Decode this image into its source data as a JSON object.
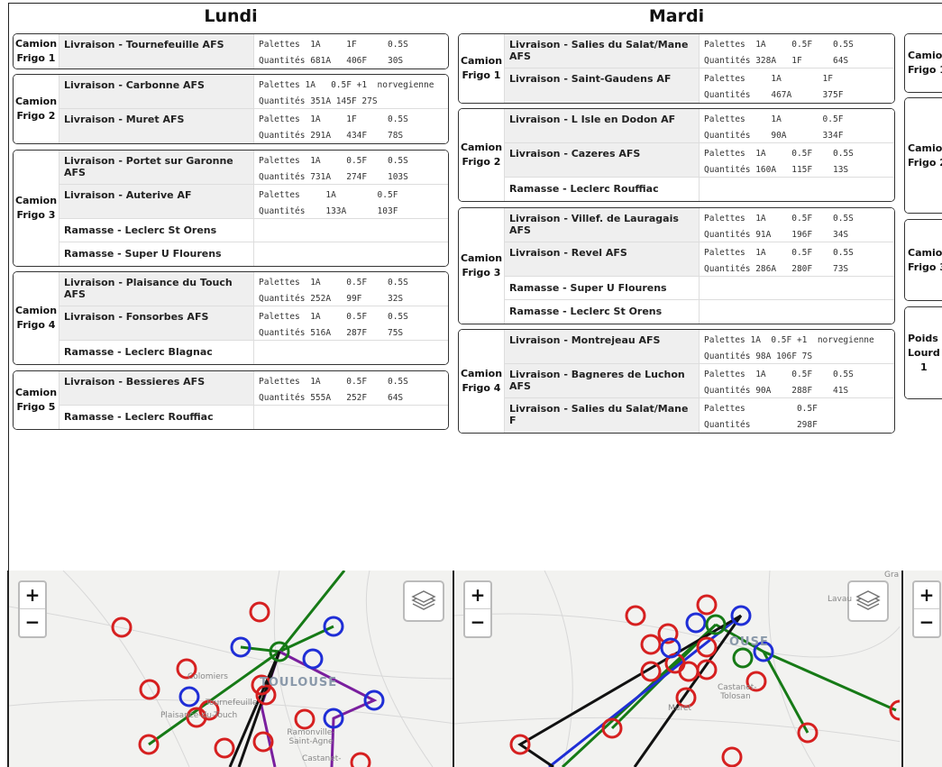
{
  "days": [
    {
      "title": "Lundi",
      "trucks": [
        {
          "label1": "Camion",
          "label2": "Frigo 1",
          "rows": [
            {
              "name": "Livraison - Tournefeuille AFS",
              "q1": "Palettes  1A     1F      0.5S",
              "q2": "Quantités 681A   406F    30S"
            }
          ]
        },
        {
          "label1": "Camion",
          "label2": "Frigo 2",
          "rows": [
            {
              "name": "Livraison - Carbonne AFS",
              "q1": "Palettes 1A   0.5F +1  norvegienne",
              "q2": "Quantités 351A 145F 27S"
            },
            {
              "name": "Livraison - Muret AFS",
              "q1": "Palettes  1A     1F      0.5S",
              "q2": "Quantités 291A   434F    78S"
            }
          ]
        },
        {
          "label1": "Camion",
          "label2": "Frigo 3",
          "rows": [
            {
              "name": "Livraison - Portet sur Garonne AFS",
              "q1": "Palettes  1A     0.5F    0.5S",
              "q2": "Quantités 731A   274F    103S"
            },
            {
              "name": "Livraison - Auterive AF",
              "q1": "Palettes     1A        0.5F",
              "q2": "Quantités    133A      103F"
            },
            {
              "name": "Ramasse - Leclerc St Orens",
              "q1": "",
              "q2": ""
            },
            {
              "name": "Ramasse - Super U Flourens",
              "q1": "",
              "q2": ""
            }
          ]
        },
        {
          "label1": "Camion",
          "label2": "Frigo 4",
          "rows": [
            {
              "name": "Livraison - Plaisance du Touch AFS",
              "q1": "Palettes  1A     0.5F    0.5S",
              "q2": "Quantités 252A   99F     32S"
            },
            {
              "name": "Livraison - Fonsorbes AFS",
              "q1": "Palettes  1A     0.5F    0.5S",
              "q2": "Quantités 516A   287F    75S"
            },
            {
              "name": "Ramasse - Leclerc Blagnac",
              "q1": "",
              "q2": ""
            }
          ]
        },
        {
          "label1": "Camion",
          "label2": "Frigo 5",
          "rows": [
            {
              "name": "Livraison - Bessieres AFS",
              "q1": "Palettes  1A     0.5F    0.5S",
              "q2": "Quantités 555A   252F    64S"
            },
            {
              "name": "Ramasse - Leclerc Rouffiac",
              "q1": "",
              "q2": ""
            }
          ]
        }
      ]
    },
    {
      "title": "Mardi",
      "trucks": [
        {
          "label1": "Camion",
          "label2": "Frigo 1",
          "rows": [
            {
              "name": "Livraison - Salies du Salat/Mane AFS",
              "q1": "Palettes  1A     0.5F    0.5S",
              "q2": "Quantités 328A   1F      64S"
            },
            {
              "name": "Livraison - Saint-Gaudens AF",
              "q1": "Palettes     1A        1F",
              "q2": "Quantités    467A      375F"
            }
          ]
        },
        {
          "label1": "Camion",
          "label2": "Frigo 2",
          "rows": [
            {
              "name": "Livraison - L Isle en Dodon AF",
              "q1": "Palettes     1A        0.5F",
              "q2": "Quantités    90A       334F"
            },
            {
              "name": "Livraison - Cazeres AFS",
              "q1": "Palettes  1A     0.5F    0.5S",
              "q2": "Quantités 160A   115F    13S"
            },
            {
              "name": "Ramasse - Leclerc Rouffiac",
              "q1": "",
              "q2": ""
            }
          ]
        },
        {
          "label1": "Camion",
          "label2": "Frigo 3",
          "rows": [
            {
              "name": "Livraison - Villef. de Lauragais AFS",
              "q1": "Palettes  1A     0.5F    0.5S",
              "q2": "Quantités 91A    196F    34S"
            },
            {
              "name": "Livraison - Revel AFS",
              "q1": "Palettes  1A     0.5F    0.5S",
              "q2": "Quantités 286A   280F    73S"
            },
            {
              "name": "Ramasse - Super U Flourens",
              "q1": "",
              "q2": ""
            },
            {
              "name": "Ramasse - Leclerc St Orens",
              "q1": "",
              "q2": ""
            }
          ]
        },
        {
          "label1": "Camion",
          "label2": "Frigo 4",
          "rows": [
            {
              "name": "Livraison - Montrejeau AFS",
              "q1": "Palettes 1A  0.5F +1  norvegienne",
              "q2": "Quantités 98A 106F 7S"
            },
            {
              "name": "Livraison - Bagneres de Luchon AFS",
              "q1": "Palettes  1A     0.5F    0.5S",
              "q2": "Quantités 90A    288F    41S"
            },
            {
              "name": "Livraison - Salies du Salat/Mane F",
              "q1": "Palettes          0.5F",
              "q2": "Quantités         298F"
            }
          ]
        }
      ]
    }
  ],
  "third_day": {
    "trucks": [
      {
        "label1": "Camion",
        "label2": "Frigo 1"
      },
      {
        "label1": "Camion",
        "label2": "Frigo 2"
      },
      {
        "label1": "Camion",
        "label2": "Frigo 3"
      },
      {
        "label1": "Poids",
        "label2": "Lourd",
        "label3": "1"
      }
    ]
  },
  "maps": {
    "zoom_in": "+",
    "zoom_out": "−",
    "lundi_labels": [
      "Colomiers",
      "Tournefeuille",
      "Plaisance-du-Touch",
      "TOULOUSE",
      "Ramonville-Saint-Agne",
      "Castanet-"
    ],
    "mardi_labels": [
      "Lavau",
      "TOULOUSE",
      "Castanet-Tolosan",
      "Muret",
      "Gra"
    ],
    "map_lundi_city": "TOULOUSE",
    "map_mardi_city": "OUSE"
  },
  "colors": {
    "red": "#d62020",
    "blue": "#1f2ed6",
    "green": "#167a16",
    "purple": "#7a1f9e",
    "black": "#111111"
  }
}
